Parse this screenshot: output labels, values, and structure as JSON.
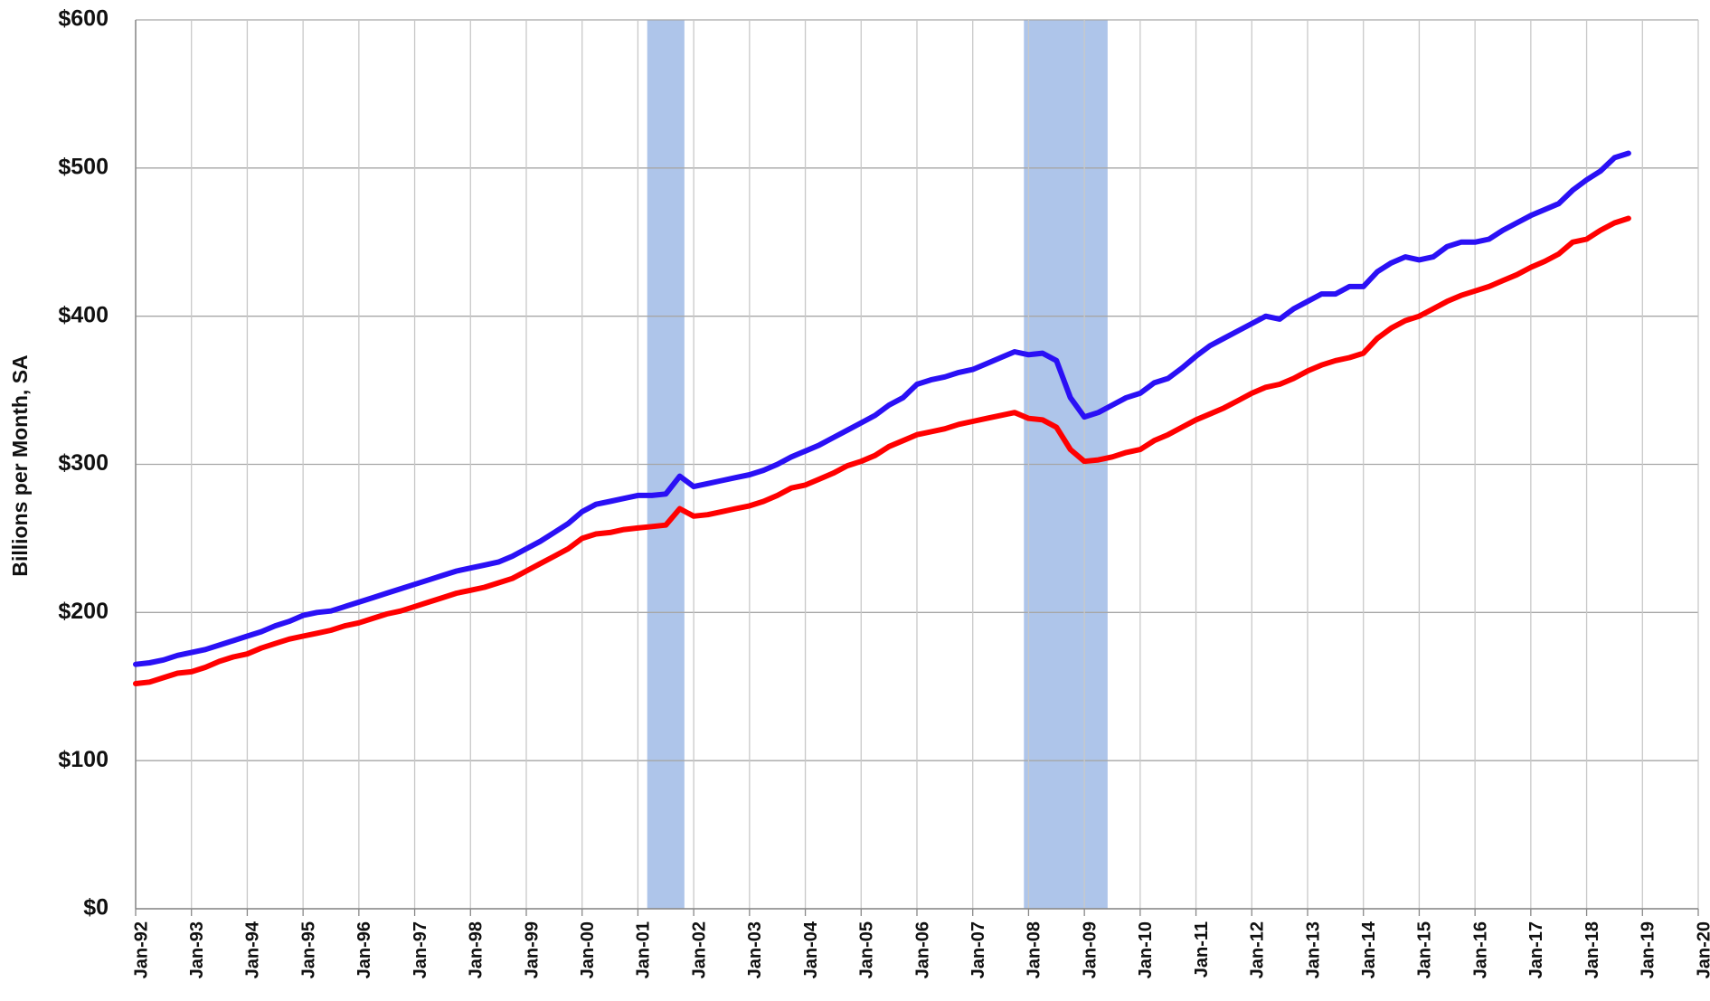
{
  "chart_data": {
    "type": "line",
    "y_label": "Billions per Month, SA",
    "x": [
      "Jan-92",
      "Apr-92",
      "Jul-92",
      "Oct-92",
      "Jan-93",
      "Apr-93",
      "Jul-93",
      "Oct-93",
      "Jan-94",
      "Apr-94",
      "Jul-94",
      "Oct-94",
      "Jan-95",
      "Apr-95",
      "Jul-95",
      "Oct-95",
      "Jan-96",
      "Apr-96",
      "Jul-96",
      "Oct-96",
      "Jan-97",
      "Apr-97",
      "Jul-97",
      "Oct-97",
      "Jan-98",
      "Apr-98",
      "Jul-98",
      "Oct-98",
      "Jan-99",
      "Apr-99",
      "Jul-99",
      "Oct-99",
      "Jan-00",
      "Apr-00",
      "Jul-00",
      "Oct-00",
      "Jan-01",
      "Apr-01",
      "Jul-01",
      "Oct-01",
      "Jan-02",
      "Apr-02",
      "Jul-02",
      "Oct-02",
      "Jan-03",
      "Apr-03",
      "Jul-03",
      "Oct-03",
      "Jan-04",
      "Apr-04",
      "Jul-04",
      "Oct-04",
      "Jan-05",
      "Apr-05",
      "Jul-05",
      "Oct-05",
      "Jan-06",
      "Apr-06",
      "Jul-06",
      "Oct-06",
      "Jan-07",
      "Apr-07",
      "Jul-07",
      "Oct-07",
      "Jan-08",
      "Apr-08",
      "Jul-08",
      "Oct-08",
      "Jan-09",
      "Apr-09",
      "Jul-09",
      "Oct-09",
      "Jan-10",
      "Apr-10",
      "Jul-10",
      "Oct-10",
      "Jan-11",
      "Apr-11",
      "Jul-11",
      "Oct-11",
      "Jan-12",
      "Apr-12",
      "Jul-12",
      "Oct-12",
      "Jan-13",
      "Apr-13",
      "Jul-13",
      "Oct-13",
      "Jan-14",
      "Apr-14",
      "Jul-14",
      "Oct-14",
      "Jan-15",
      "Apr-15",
      "Jul-15",
      "Oct-15",
      "Jan-16",
      "Apr-16",
      "Jul-16",
      "Oct-16",
      "Jan-17",
      "Apr-17",
      "Jul-17",
      "Oct-17",
      "Jan-18",
      "Apr-18",
      "Jul-18",
      "Oct-18"
    ],
    "series": [
      {
        "color": "#2a10f5",
        "values": [
          165,
          166,
          168,
          171,
          173,
          175,
          178,
          181,
          184,
          187,
          191,
          194,
          198,
          200,
          201,
          204,
          207,
          210,
          213,
          216,
          219,
          222,
          225,
          228,
          230,
          232,
          234,
          238,
          243,
          248,
          254,
          260,
          268,
          273,
          275,
          277,
          279,
          279,
          280,
          292,
          285,
          287,
          289,
          291,
          293,
          296,
          300,
          305,
          309,
          313,
          318,
          323,
          328,
          333,
          340,
          345,
          354,
          357,
          359,
          362,
          364,
          368,
          372,
          376,
          374,
          375,
          370,
          345,
          332,
          335,
          340,
          345,
          348,
          355,
          358,
          365,
          373,
          380,
          385,
          390,
          395,
          400,
          398,
          405,
          410,
          415,
          415,
          420,
          420,
          430,
          436,
          440,
          438,
          440,
          447,
          450,
          450,
          452,
          458,
          463,
          468,
          472,
          476,
          485,
          492,
          498,
          507,
          510
        ]
      },
      {
        "color": "#ff0000",
        "values": [
          152,
          153,
          156,
          159,
          160,
          163,
          167,
          170,
          172,
          176,
          179,
          182,
          184,
          186,
          188,
          191,
          193,
          196,
          199,
          201,
          204,
          207,
          210,
          213,
          215,
          217,
          220,
          223,
          228,
          233,
          238,
          243,
          250,
          253,
          254,
          256,
          257,
          258,
          259,
          270,
          265,
          266,
          268,
          270,
          272,
          275,
          279,
          284,
          286,
          290,
          294,
          299,
          302,
          306,
          312,
          316,
          320,
          322,
          324,
          327,
          329,
          331,
          333,
          335,
          331,
          330,
          325,
          310,
          302,
          303,
          305,
          308,
          310,
          316,
          320,
          325,
          330,
          334,
          338,
          343,
          348,
          352,
          354,
          358,
          363,
          367,
          370,
          372,
          375,
          385,
          392,
          397,
          400,
          405,
          410,
          414,
          417,
          420,
          424,
          428,
          433,
          437,
          442,
          450,
          452,
          458,
          463,
          466
        ]
      }
    ],
    "shaded_periods": [
      [
        "Mar-01",
        "Nov-01"
      ],
      [
        "Dec-07",
        "Jun-09"
      ]
    ],
    "shade_color": "#aec5ea",
    "xlim": [
      "Jan-92",
      "Jan-20"
    ],
    "xticks": [
      "Jan-92",
      "Jan-93",
      "Jan-94",
      "Jan-95",
      "Jan-96",
      "Jan-97",
      "Jan-98",
      "Jan-99",
      "Jan-00",
      "Jan-01",
      "Jan-02",
      "Jan-03",
      "Jan-04",
      "Jan-05",
      "Jan-06",
      "Jan-07",
      "Jan-08",
      "Jan-09",
      "Jan-10",
      "Jan-11",
      "Jan-12",
      "Jan-13",
      "Jan-14",
      "Jan-15",
      "Jan-16",
      "Jan-17",
      "Jan-18",
      "Jan-19",
      "Jan-20"
    ],
    "ylim": [
      0,
      600
    ],
    "yticks": [
      {
        "value": 0,
        "label": "$0"
      },
      {
        "value": 100,
        "label": "$100"
      },
      {
        "value": 200,
        "label": "$200"
      },
      {
        "value": 300,
        "label": "$300"
      },
      {
        "value": 400,
        "label": "$400"
      },
      {
        "value": 500,
        "label": "$500"
      },
      {
        "value": 600,
        "label": "$600"
      }
    ],
    "grid": true
  }
}
